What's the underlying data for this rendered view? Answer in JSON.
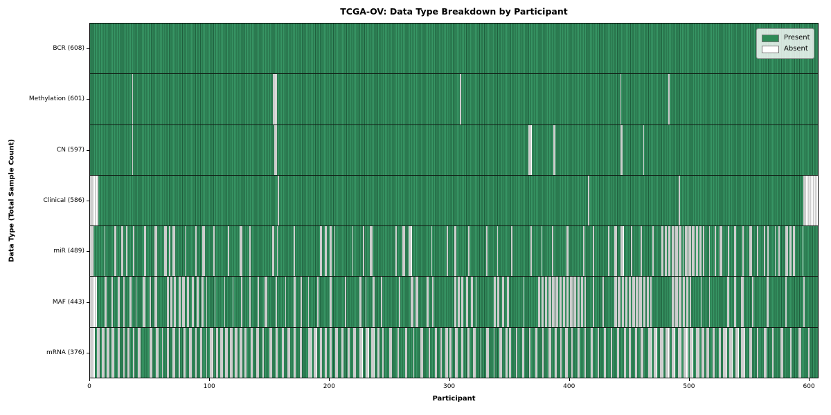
{
  "chart_data": {
    "type": "heatmap",
    "title": "TCGA-OV: Data Type Breakdown by Participant",
    "xlabel": "Participant",
    "ylabel": "Data Type (Total Sample Count)",
    "x_min": 0,
    "x_max": 608,
    "x_ticks": [
      0,
      100,
      200,
      300,
      400,
      500,
      600
    ],
    "n_participants": 608,
    "grid": false,
    "legend_position": "upper right",
    "legend": [
      {
        "label": "Present",
        "color": "#2e8b57"
      },
      {
        "label": "Absent",
        "color": "#ffffff"
      }
    ],
    "colors": {
      "present_fill": "#2e8b57",
      "present_edge": "#1f5f3d",
      "absent_fill": "#ffffff",
      "absent_edge": "#9b9b9b",
      "separator": "#101c14",
      "spine": "#000000"
    },
    "rows": [
      {
        "label": "BCR (608)",
        "name": "BCR",
        "present_count": 608,
        "absent_count": 0,
        "absent_ranges": []
      },
      {
        "label": "Methylation (601)",
        "name": "Methylation",
        "present_count": 601,
        "absent_count": 7,
        "absent_ranges": [
          [
            35,
            35
          ],
          [
            153,
            155
          ],
          [
            309,
            309
          ],
          [
            443,
            443
          ],
          [
            483,
            483
          ]
        ]
      },
      {
        "label": "CN (597)",
        "name": "CN",
        "present_count": 597,
        "absent_count": 11,
        "absent_ranges": [
          [
            35,
            35
          ],
          [
            154,
            155
          ],
          [
            366,
            368
          ],
          [
            387,
            388
          ],
          [
            443,
            444
          ],
          [
            462,
            462
          ]
        ]
      },
      {
        "label": "Clinical (586)",
        "name": "Clinical",
        "present_count": 586,
        "absent_count": 22,
        "absent_ranges": [
          [
            0,
            6
          ],
          [
            157,
            157
          ],
          [
            416,
            416
          ],
          [
            492,
            492
          ],
          [
            596,
            607
          ]
        ]
      },
      {
        "label": "miR (489)",
        "name": "miR",
        "present_count": 489,
        "absent_count": 119,
        "absent_ranges": [
          [
            0,
            2
          ],
          [
            12,
            12
          ],
          [
            20,
            21
          ],
          [
            26,
            27
          ],
          [
            30,
            30
          ],
          [
            36,
            36
          ],
          [
            45,
            46
          ],
          [
            54,
            55
          ],
          [
            62,
            63
          ],
          [
            66,
            66
          ],
          [
            69,
            70
          ],
          [
            79,
            79
          ],
          [
            88,
            88
          ],
          [
            94,
            95
          ],
          [
            103,
            103
          ],
          [
            115,
            115
          ],
          [
            125,
            126
          ],
          [
            133,
            133
          ],
          [
            152,
            153
          ],
          [
            156,
            156
          ],
          [
            170,
            170
          ],
          [
            192,
            193
          ],
          [
            196,
            197
          ],
          [
            200,
            201
          ],
          [
            204,
            204
          ],
          [
            219,
            219
          ],
          [
            228,
            228
          ],
          [
            234,
            235
          ],
          [
            255,
            255
          ],
          [
            261,
            262
          ],
          [
            266,
            268
          ],
          [
            285,
            285
          ],
          [
            298,
            298
          ],
          [
            304,
            305
          ],
          [
            316,
            316
          ],
          [
            331,
            331
          ],
          [
            340,
            340
          ],
          [
            352,
            352
          ],
          [
            368,
            368
          ],
          [
            377,
            377
          ],
          [
            386,
            386
          ],
          [
            398,
            399
          ],
          [
            412,
            412
          ],
          [
            420,
            420
          ],
          [
            433,
            433
          ],
          [
            438,
            439
          ],
          [
            443,
            445
          ],
          [
            452,
            452
          ],
          [
            460,
            460
          ],
          [
            470,
            470
          ],
          [
            477,
            478
          ],
          [
            480,
            481
          ],
          [
            483,
            484
          ],
          [
            486,
            487
          ],
          [
            489,
            490
          ],
          [
            492,
            493
          ],
          [
            495,
            495
          ],
          [
            497,
            498
          ],
          [
            500,
            501
          ],
          [
            503,
            504
          ],
          [
            506,
            507
          ],
          [
            509,
            510
          ],
          [
            512,
            512
          ],
          [
            517,
            517
          ],
          [
            522,
            522
          ],
          [
            526,
            527
          ],
          [
            533,
            533
          ],
          [
            538,
            539
          ],
          [
            545,
            545
          ],
          [
            551,
            552
          ],
          [
            557,
            557
          ],
          [
            563,
            563
          ],
          [
            566,
            566
          ],
          [
            572,
            572
          ],
          [
            575,
            575
          ],
          [
            581,
            582
          ],
          [
            584,
            585
          ],
          [
            587,
            588
          ],
          [
            595,
            595
          ]
        ]
      },
      {
        "label": "MAF (443)",
        "name": "MAF",
        "present_count": 443,
        "absent_count": 165,
        "absent_ranges": [
          [
            0,
            5
          ],
          [
            12,
            13
          ],
          [
            18,
            18
          ],
          [
            23,
            24
          ],
          [
            28,
            28
          ],
          [
            33,
            34
          ],
          [
            38,
            38
          ],
          [
            44,
            45
          ],
          [
            50,
            50
          ],
          [
            54,
            55
          ],
          [
            64,
            65
          ],
          [
            67,
            68
          ],
          [
            70,
            71
          ],
          [
            74,
            75
          ],
          [
            77,
            78
          ],
          [
            81,
            82
          ],
          [
            85,
            86
          ],
          [
            89,
            90
          ],
          [
            93,
            94
          ],
          [
            97,
            97
          ],
          [
            104,
            104
          ],
          [
            112,
            112
          ],
          [
            119,
            119
          ],
          [
            126,
            126
          ],
          [
            133,
            133
          ],
          [
            140,
            140
          ],
          [
            146,
            147
          ],
          [
            155,
            155
          ],
          [
            163,
            163
          ],
          [
            170,
            171
          ],
          [
            176,
            176
          ],
          [
            182,
            182
          ],
          [
            190,
            190
          ],
          [
            200,
            201
          ],
          [
            213,
            213
          ],
          [
            225,
            226
          ],
          [
            230,
            230
          ],
          [
            236,
            237
          ],
          [
            243,
            243
          ],
          [
            258,
            258
          ],
          [
            268,
            269
          ],
          [
            272,
            273
          ],
          [
            281,
            282
          ],
          [
            286,
            286
          ],
          [
            304,
            305
          ],
          [
            307,
            308
          ],
          [
            310,
            311
          ],
          [
            314,
            315
          ],
          [
            318,
            319
          ],
          [
            322,
            322
          ],
          [
            337,
            338
          ],
          [
            340,
            341
          ],
          [
            344,
            345
          ],
          [
            348,
            349
          ],
          [
            362,
            362
          ],
          [
            374,
            375
          ],
          [
            377,
            378
          ],
          [
            380,
            381
          ],
          [
            383,
            384
          ],
          [
            386,
            387
          ],
          [
            389,
            390
          ],
          [
            392,
            393
          ],
          [
            395,
            396
          ],
          [
            398,
            399
          ],
          [
            401,
            402
          ],
          [
            404,
            405
          ],
          [
            407,
            408
          ],
          [
            410,
            411
          ],
          [
            413,
            413
          ],
          [
            420,
            420
          ],
          [
            428,
            428
          ],
          [
            438,
            439
          ],
          [
            441,
            442
          ],
          [
            444,
            445
          ],
          [
            447,
            448
          ],
          [
            450,
            451
          ],
          [
            453,
            454
          ],
          [
            456,
            457
          ],
          [
            459,
            460
          ],
          [
            462,
            463
          ],
          [
            465,
            466
          ],
          [
            468,
            468
          ],
          [
            486,
            487
          ],
          [
            489,
            490
          ],
          [
            492,
            493
          ],
          [
            495,
            496
          ],
          [
            498,
            499
          ],
          [
            501,
            501
          ],
          [
            510,
            510
          ],
          [
            517,
            517
          ],
          [
            532,
            533
          ],
          [
            538,
            539
          ],
          [
            544,
            545
          ],
          [
            553,
            553
          ],
          [
            565,
            566
          ],
          [
            581,
            581
          ],
          [
            596,
            596
          ]
        ]
      },
      {
        "label": "mRNA (376)",
        "name": "mRNA",
        "present_count": 376,
        "absent_count": 232,
        "absent_ranges": [
          [
            0,
            3
          ],
          [
            6,
            7
          ],
          [
            10,
            11
          ],
          [
            14,
            15
          ],
          [
            18,
            19
          ],
          [
            23,
            24
          ],
          [
            28,
            28
          ],
          [
            31,
            32
          ],
          [
            36,
            36
          ],
          [
            40,
            41
          ],
          [
            50,
            51
          ],
          [
            55,
            56
          ],
          [
            60,
            60
          ],
          [
            64,
            65
          ],
          [
            69,
            70
          ],
          [
            74,
            74
          ],
          [
            78,
            79
          ],
          [
            83,
            84
          ],
          [
            88,
            88
          ],
          [
            92,
            93
          ],
          [
            97,
            97
          ],
          [
            100,
            102
          ],
          [
            105,
            106
          ],
          [
            109,
            110
          ],
          [
            113,
            114
          ],
          [
            117,
            118
          ],
          [
            121,
            122
          ],
          [
            125,
            126
          ],
          [
            129,
            130
          ],
          [
            134,
            135
          ],
          [
            139,
            140
          ],
          [
            144,
            144
          ],
          [
            150,
            151
          ],
          [
            155,
            156
          ],
          [
            160,
            161
          ],
          [
            165,
            166
          ],
          [
            170,
            171
          ],
          [
            175,
            176
          ],
          [
            182,
            184
          ],
          [
            187,
            189
          ],
          [
            192,
            193
          ],
          [
            196,
            197
          ],
          [
            200,
            201
          ],
          [
            205,
            206
          ],
          [
            210,
            211
          ],
          [
            215,
            216
          ],
          [
            220,
            221
          ],
          [
            225,
            227
          ],
          [
            230,
            232
          ],
          [
            235,
            237
          ],
          [
            240,
            241
          ],
          [
            244,
            244
          ],
          [
            250,
            251
          ],
          [
            257,
            257
          ],
          [
            263,
            264
          ],
          [
            270,
            270
          ],
          [
            276,
            277
          ],
          [
            283,
            283
          ],
          [
            288,
            289
          ],
          [
            293,
            293
          ],
          [
            297,
            298
          ],
          [
            300,
            301
          ],
          [
            305,
            306
          ],
          [
            310,
            311
          ],
          [
            315,
            316
          ],
          [
            320,
            321
          ],
          [
            326,
            326
          ],
          [
            331,
            332
          ],
          [
            337,
            337
          ],
          [
            342,
            343
          ],
          [
            347,
            348
          ],
          [
            350,
            351
          ],
          [
            356,
            356
          ],
          [
            361,
            362
          ],
          [
            367,
            367
          ],
          [
            372,
            373
          ],
          [
            378,
            378
          ],
          [
            383,
            384
          ],
          [
            388,
            389
          ],
          [
            393,
            393
          ],
          [
            397,
            398
          ],
          [
            402,
            402
          ],
          [
            407,
            408
          ],
          [
            413,
            413
          ],
          [
            418,
            419
          ],
          [
            424,
            424
          ],
          [
            429,
            430
          ],
          [
            435,
            435
          ],
          [
            440,
            441
          ],
          [
            446,
            447
          ],
          [
            450,
            451
          ],
          [
            455,
            456
          ],
          [
            460,
            461
          ],
          [
            466,
            468
          ],
          [
            471,
            473
          ],
          [
            476,
            478
          ],
          [
            481,
            483
          ],
          [
            486,
            488
          ],
          [
            491,
            493
          ],
          [
            496,
            499
          ],
          [
            501,
            503
          ],
          [
            506,
            508
          ],
          [
            511,
            512
          ],
          [
            515,
            516
          ],
          [
            520,
            521
          ],
          [
            525,
            526
          ],
          [
            529,
            531
          ],
          [
            534,
            536
          ],
          [
            539,
            541
          ],
          [
            544,
            546
          ],
          [
            551,
            552
          ],
          [
            557,
            557
          ],
          [
            563,
            564
          ],
          [
            570,
            570
          ],
          [
            577,
            578
          ],
          [
            585,
            585
          ],
          [
            592,
            593
          ],
          [
            600,
            600
          ]
        ]
      }
    ]
  }
}
